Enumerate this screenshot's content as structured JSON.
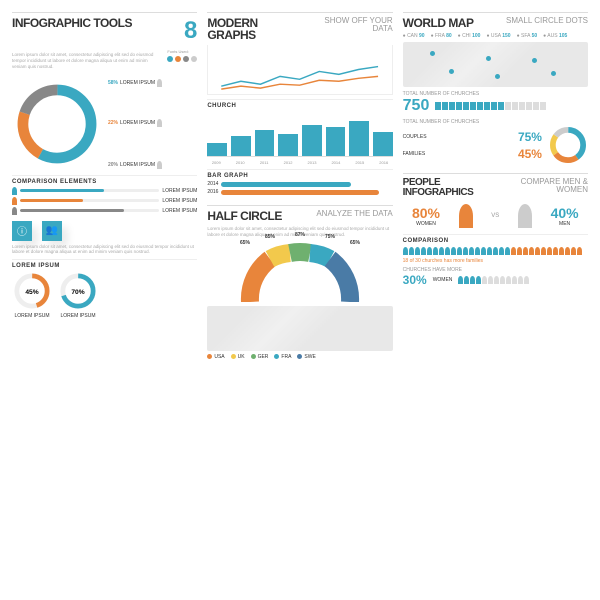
{
  "colors": {
    "teal": "#3aa8c1",
    "orange": "#e8853b",
    "yellow": "#f2c94c",
    "green": "#6fb06f",
    "blue": "#4a7ba6",
    "grey": "#cccccc",
    "dgrey": "#888"
  },
  "col1": {
    "title": "INFOGRAPHIC TOOLS",
    "num": "8",
    "lorem": "Lorem ipsum dolor sit amet, consectetur adipiscing elit sed do eiusmod tempor incididunt ut labore et dolore magna aliqua ut enim ad minim veniam quis nostrud.",
    "donut": {
      "segments": [
        {
          "pct": 58,
          "color": "#3aa8c1"
        },
        {
          "pct": 22,
          "color": "#e8853b"
        },
        {
          "pct": 20,
          "color": "#888"
        }
      ],
      "labels": [
        {
          "pct": "58%",
          "txt": "LOREM IPSUM"
        },
        {
          "pct": "22%",
          "txt": "LOREM IPSUM"
        },
        {
          "pct": "20%",
          "txt": "LOREM IPSUM"
        }
      ]
    },
    "comp_title": "COMPARISON ELEMENTS",
    "bars": [
      {
        "label": "LOREM IPSUM",
        "val": 60,
        "color": "#3aa8c1"
      },
      {
        "label": "LOREM IPSUM",
        "val": 45,
        "color": "#e8853b"
      },
      {
        "label": "LOREM IPSUM",
        "val": 75,
        "color": "#888"
      }
    ],
    "mini": [
      {
        "pct": 45,
        "color": "#e8853b",
        "txt": "LOREM IPSUM"
      },
      {
        "pct": 70,
        "color": "#3aa8c1",
        "txt": "LOREM IPSUM"
      }
    ]
  },
  "col2": {
    "p1": {
      "title": "MODERN GRAPHS",
      "sub": "SHOW OFF YOUR DATA",
      "line": {
        "series": [
          {
            "color": "#3aa8c1",
            "pts": [
              15,
              25,
              20,
              35,
              30,
              45,
              40,
              50
            ]
          },
          {
            "color": "#e8853b",
            "pts": [
              10,
              15,
              12,
              20,
              18,
              28,
              25,
              32
            ]
          }
        ]
      },
      "church": "CHURCH",
      "bars": [
        30,
        45,
        60,
        50,
        70,
        65,
        80,
        55
      ],
      "years": [
        "2009",
        "2010",
        "2011",
        "2012",
        "2013",
        "2014",
        "2015",
        "2016"
      ],
      "bgraph": "BAR GRAPH",
      "hbars": [
        {
          "yr": "2014",
          "val": 70,
          "color": "#3aa8c1"
        },
        {
          "yr": "2016",
          "val": 85,
          "color": "#e8853b"
        }
      ]
    },
    "p2": {
      "title": "HALF CIRCLE",
      "sub": "ANALYZE THE DATA",
      "slices": [
        {
          "pct": "65%",
          "color": "#e8853b"
        },
        {
          "pct": "85%",
          "color": "#f2c94c"
        },
        {
          "pct": "87%",
          "color": "#6fb06f"
        },
        {
          "pct": "75%",
          "color": "#3aa8c1"
        },
        {
          "pct": "65%",
          "color": "#4a7ba6"
        }
      ],
      "legend": [
        {
          "c": "#e8853b",
          "t": "USA"
        },
        {
          "c": "#f2c94c",
          "t": "UK"
        },
        {
          "c": "#6fb06f",
          "t": "GER"
        },
        {
          "c": "#3aa8c1",
          "t": "FRA"
        },
        {
          "c": "#4a7ba6",
          "t": "SWE"
        }
      ]
    }
  },
  "col3": {
    "p1": {
      "title": "WORLD MAP",
      "sub": "SMALL CIRCLE DOTS",
      "countries": [
        {
          "c": "CAN",
          "v": 90
        },
        {
          "c": "FRA",
          "v": 80
        },
        {
          "c": "CHI",
          "v": 100
        },
        {
          "c": "USA",
          "v": 150
        },
        {
          "c": "SFA",
          "v": 50
        },
        {
          "c": "AUS",
          "v": 105
        }
      ],
      "total_lbl": "TOTAL NUMBER OF CHURCHES",
      "total": "750",
      "couples": "COUPLES",
      "couples_v": "75%",
      "families": "FAMILIES",
      "families_v": "45%",
      "sdonut": [
        {
          "v": 40,
          "c": "#3aa8c1"
        },
        {
          "v": 25,
          "c": "#e8853b"
        },
        {
          "v": 20,
          "c": "#f2c94c"
        },
        {
          "v": 15,
          "c": "#888"
        }
      ]
    },
    "p2": {
      "title": "PEOPLE INFOGRAPHICS",
      "sub": "COMPARE MEN & WOMEN",
      "women": "80%",
      "women_lbl": "WOMEN",
      "men": "40%",
      "men_lbl": "MEN",
      "vs": "VS",
      "comp": "COMPARISON",
      "note": "18 of 30 churches has more families",
      "more": "CHURCHES HAVE MORE",
      "more_v": "30%",
      "more_t": "WOMEN"
    }
  }
}
